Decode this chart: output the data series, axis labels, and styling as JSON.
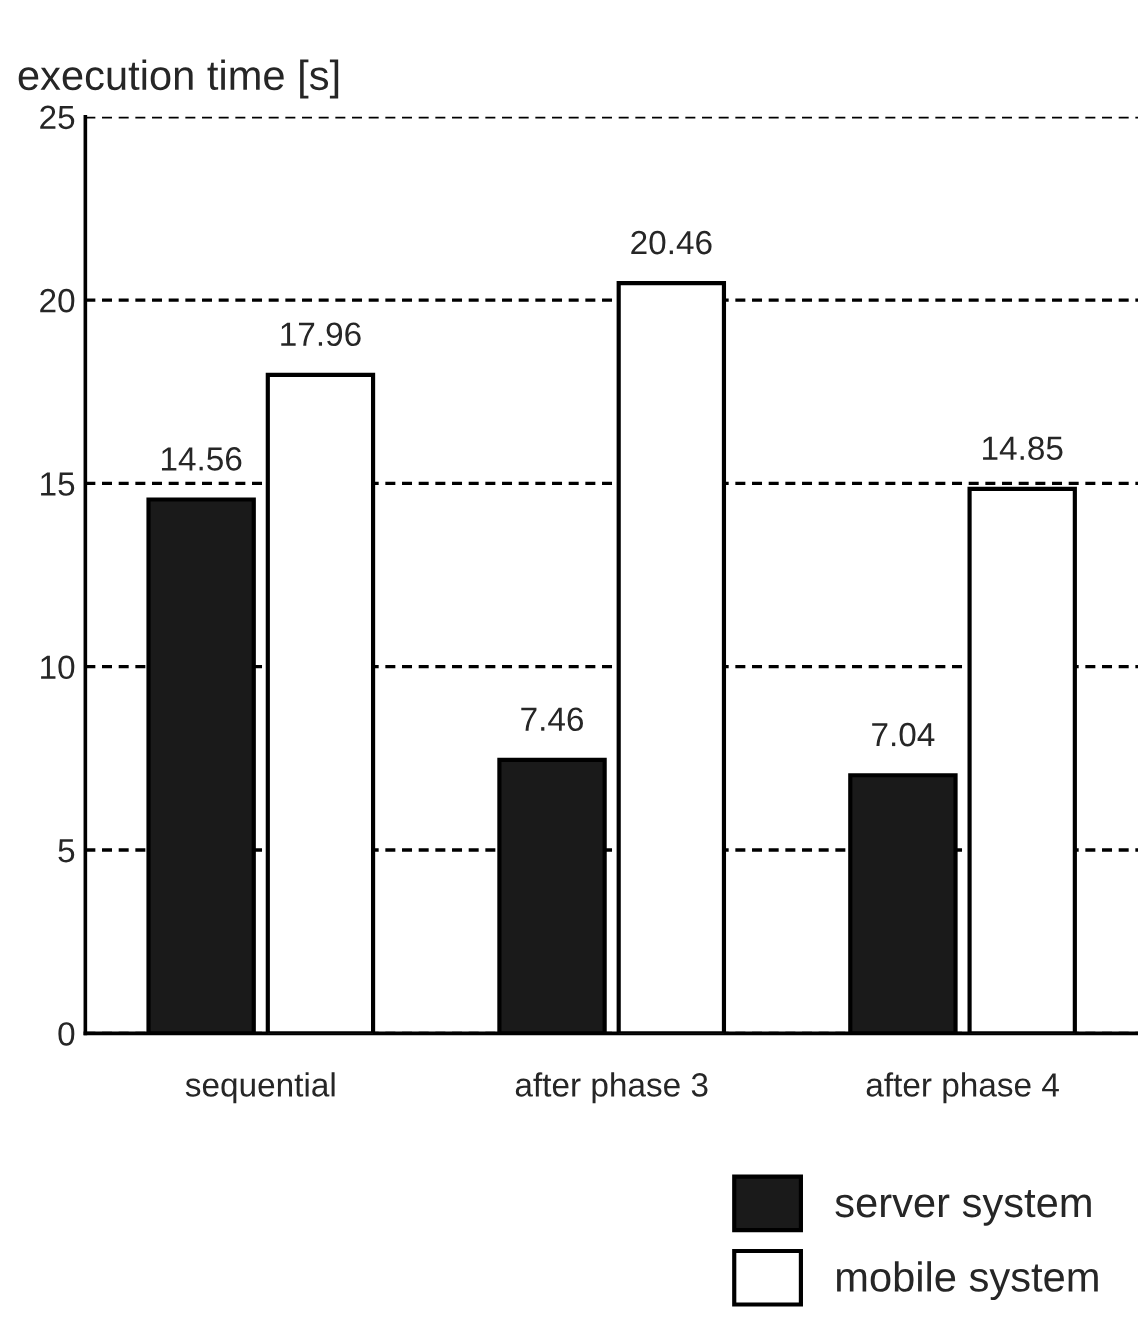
{
  "chart_data": {
    "type": "bar",
    "ylabel": "execution time [s]",
    "categories": [
      "sequential",
      "after phase 3",
      "after phase 4"
    ],
    "series": [
      {
        "name": "server system",
        "color": "#1a1a1a",
        "values": [
          14.56,
          7.46,
          7.04
        ]
      },
      {
        "name": "mobile system",
        "color": "#ffffff",
        "values": [
          17.96,
          20.46,
          14.85
        ]
      }
    ],
    "ylim": [
      0,
      25
    ],
    "yticks": [
      0,
      5,
      10,
      15,
      20,
      25
    ],
    "grid": "y",
    "legend": "bottom right",
    "data_labels": true
  }
}
